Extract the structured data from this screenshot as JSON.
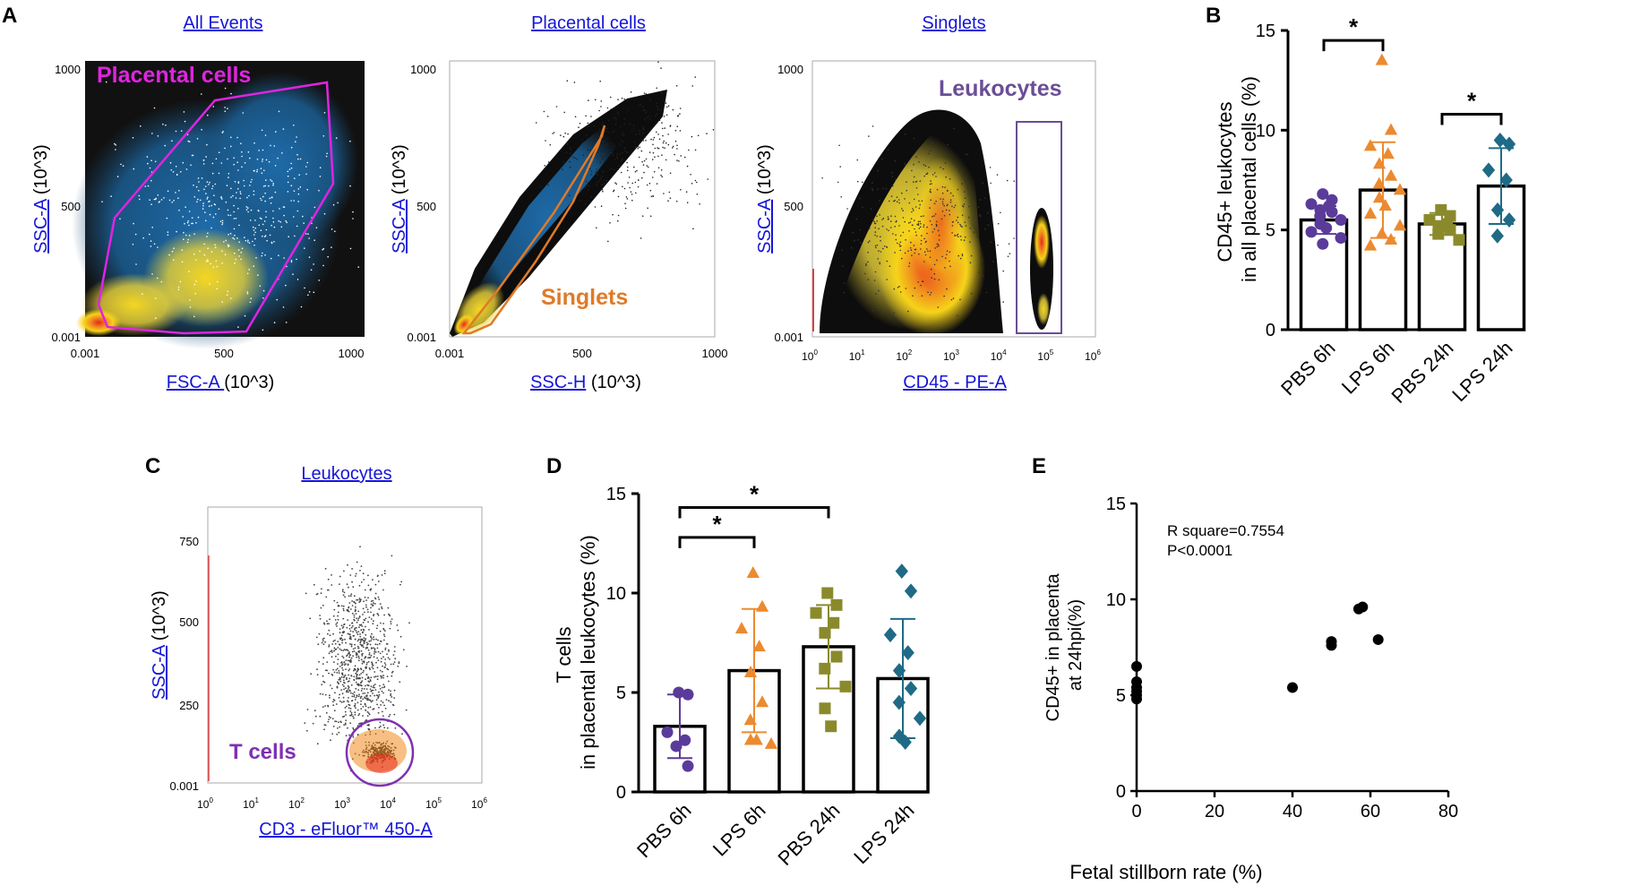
{
  "panel_letters": [
    "A",
    "B",
    "C",
    "D",
    "E"
  ],
  "flow_plots": [
    {
      "title": "All Events",
      "xlabel_link": "FSC-A ",
      "xlabel_unit": "(10^3)",
      "ylabel_link": "SSC-A",
      "ylabel_unit": " (10^3)",
      "x_ticks": [
        "0.001",
        "500",
        "1000"
      ],
      "y_ticks": [
        "1000",
        "500",
        "0.001"
      ],
      "gate_label": "Placental cells",
      "gate_color": "#e024e0"
    },
    {
      "title": "Placental cells",
      "xlabel_link": "SSC-H",
      "xlabel_unit": " (10^3)",
      "ylabel_link": "SSC-A",
      "ylabel_unit": " (10^3)",
      "x_ticks": [
        "0.001",
        "500",
        "1000"
      ],
      "y_ticks": [
        "1000",
        "500",
        "0.001"
      ],
      "gate_label": "Singlets",
      "gate_color": "#e07a28"
    },
    {
      "title": "Singlets",
      "xlabel_link": "CD45 - PE-A",
      "xlabel_unit": "",
      "ylabel_link": "SSC-A",
      "ylabel_unit": " (10^3)",
      "x_ticks": [
        "0",
        "1",
        "2",
        "3",
        "4",
        "5",
        "6"
      ],
      "y_ticks": [
        "1000",
        "500",
        "0.001"
      ],
      "gate_label": "Leukocytes",
      "gate_color": "#6a4e96"
    },
    {
      "title": "Leukocytes",
      "xlabel_link": "CD3 - eFluor™ 450-A",
      "xlabel_unit": "",
      "ylabel_link": "SSC-A",
      "ylabel_unit": " (10^3)",
      "x_ticks": [
        "0",
        "1",
        "2",
        "3",
        "4",
        "5",
        "6"
      ],
      "y_ticks": [
        "750",
        "500",
        "250",
        "0.001"
      ],
      "gate_label": "T cells",
      "gate_color": "#8030b0"
    }
  ],
  "chart_data": [
    {
      "id": "B",
      "type": "bar",
      "ylabel": [
        "CD45+ leukocytes",
        "in all placental cells (%)"
      ],
      "ylim": [
        0,
        15
      ],
      "yticks": [
        0,
        5,
        10,
        15
      ],
      "categories": [
        "PBS 6h",
        "LPS 6h",
        "PBS 24h",
        "LPS 24h"
      ],
      "colors": [
        "#5b3b9a",
        "#ec8a2f",
        "#8a8a2c",
        "#1f6a86"
      ],
      "markers": [
        "circle",
        "triangle",
        "square",
        "diamond"
      ],
      "means": [
        5.5,
        7.0,
        5.3,
        7.2
      ],
      "sd": [
        0.7,
        2.4,
        0.55,
        1.9
      ],
      "points": [
        [
          6.8,
          6.5,
          6.3,
          6.2,
          6.0,
          5.9,
          5.7,
          5.5,
          5.3,
          5.1,
          4.9,
          4.6,
          4.3
        ],
        [
          13.5,
          10.0,
          9.2,
          8.8,
          8.3,
          7.7,
          7.3,
          7.0,
          6.6,
          6.2,
          5.8,
          5.2,
          4.8,
          4.5,
          4.2
        ],
        [
          6.0,
          5.7,
          5.5,
          5.3,
          5.2,
          5.0,
          4.8,
          4.5
        ],
        [
          9.5,
          9.3,
          8.0,
          7.5,
          6.0,
          5.5,
          4.7
        ]
      ],
      "significance": [
        {
          "from": 0,
          "to": 1,
          "y": 14.5,
          "label": "*"
        },
        {
          "from": 2,
          "to": 3,
          "y": 10.8,
          "label": "*"
        }
      ]
    },
    {
      "id": "D",
      "type": "bar",
      "ylabel": [
        "T cells",
        "in placental leukocytes (%)"
      ],
      "ylim": [
        0,
        15
      ],
      "yticks": [
        0,
        5,
        10,
        15
      ],
      "categories": [
        "PBS 6h",
        "LPS 6h",
        "PBS 24h",
        "LPS 24h"
      ],
      "colors": [
        "#5b3b9a",
        "#ec8a2f",
        "#8a8a2c",
        "#1f6a86"
      ],
      "markers": [
        "circle",
        "triangle",
        "square",
        "diamond"
      ],
      "means": [
        3.3,
        6.1,
        7.3,
        5.7
      ],
      "sd": [
        1.6,
        3.1,
        2.1,
        3.0
      ],
      "points": [
        [
          5.0,
          4.9,
          3.0,
          2.6,
          2.3,
          1.3
        ],
        [
          11.0,
          9.3,
          8.2,
          7.3,
          6.0,
          4.5,
          3.6,
          2.4,
          2.6,
          2.6
        ],
        [
          10.0,
          9.4,
          9.0,
          8.5,
          8.0,
          6.8,
          6.2,
          5.3,
          4.2,
          3.3
        ],
        [
          11.1,
          10.1,
          7.9,
          7.0,
          6.1,
          5.2,
          4.5,
          3.7,
          2.8,
          2.5
        ]
      ],
      "significance": [
        {
          "from": 0,
          "to": 1,
          "y": 12.8,
          "label": "*"
        },
        {
          "from": 0,
          "to": 2,
          "y": 14.3,
          "label": "*"
        }
      ]
    },
    {
      "id": "E",
      "type": "scatter",
      "xlabel": "Fetal stillborn rate (%)",
      "ylabel": [
        "CD45+ in placenta",
        "at 24hpi(%)"
      ],
      "xlim": [
        0,
        80
      ],
      "ylim": [
        0,
        15
      ],
      "xticks": [
        0,
        20,
        40,
        60,
        80
      ],
      "yticks": [
        0,
        5,
        10,
        15
      ],
      "annotation": [
        "R square=0.7554",
        "P<0.0001"
      ],
      "points": [
        [
          0,
          6.5
        ],
        [
          0,
          5.7
        ],
        [
          0,
          5.4
        ],
        [
          0,
          5.2
        ],
        [
          0,
          5.0
        ],
        [
          0,
          4.8
        ],
        [
          40,
          5.4
        ],
        [
          50,
          7.6
        ],
        [
          50,
          7.8
        ],
        [
          57,
          9.5
        ],
        [
          58,
          9.6
        ],
        [
          62,
          7.9
        ]
      ]
    }
  ]
}
